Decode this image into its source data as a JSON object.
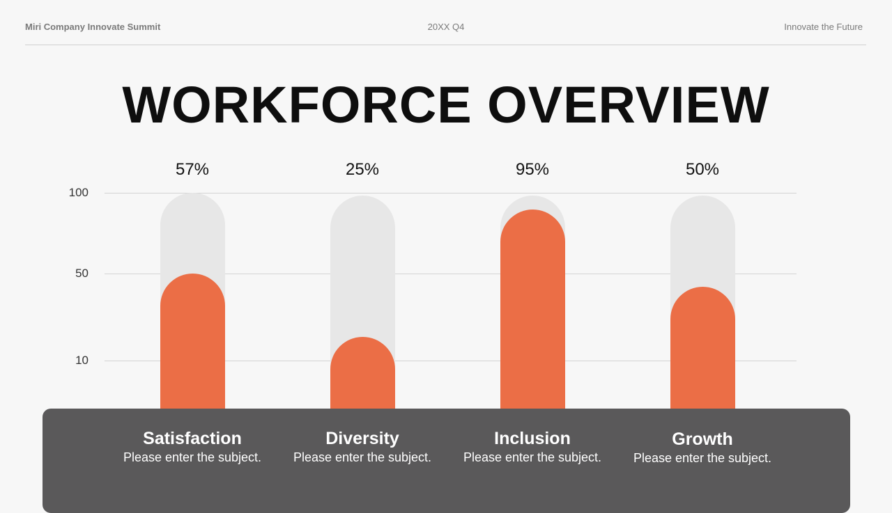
{
  "header": {
    "left": "Miri Company Innovate Summit",
    "center": "20XX Q4",
    "right": "Innovate the Future"
  },
  "title": "WORKFORCE OVERVIEW",
  "colors": {
    "fill": "#eb6e46",
    "track": "#e7e7e7",
    "panel": "#5a595a"
  },
  "chart_data": {
    "type": "bar",
    "categories": [
      "Satisfaction",
      "Diversity",
      "Inclusion",
      "Growth"
    ],
    "values": [
      57,
      25,
      95,
      50
    ],
    "data_labels": [
      "57%",
      "25%",
      "95%",
      "50%"
    ],
    "subtitles": [
      "Please enter the subject.",
      "Please enter the subject.",
      "Please enter the subject.",
      "Please enter the subject."
    ],
    "yticks": [
      "100",
      "50",
      "10"
    ],
    "grid": true
  }
}
